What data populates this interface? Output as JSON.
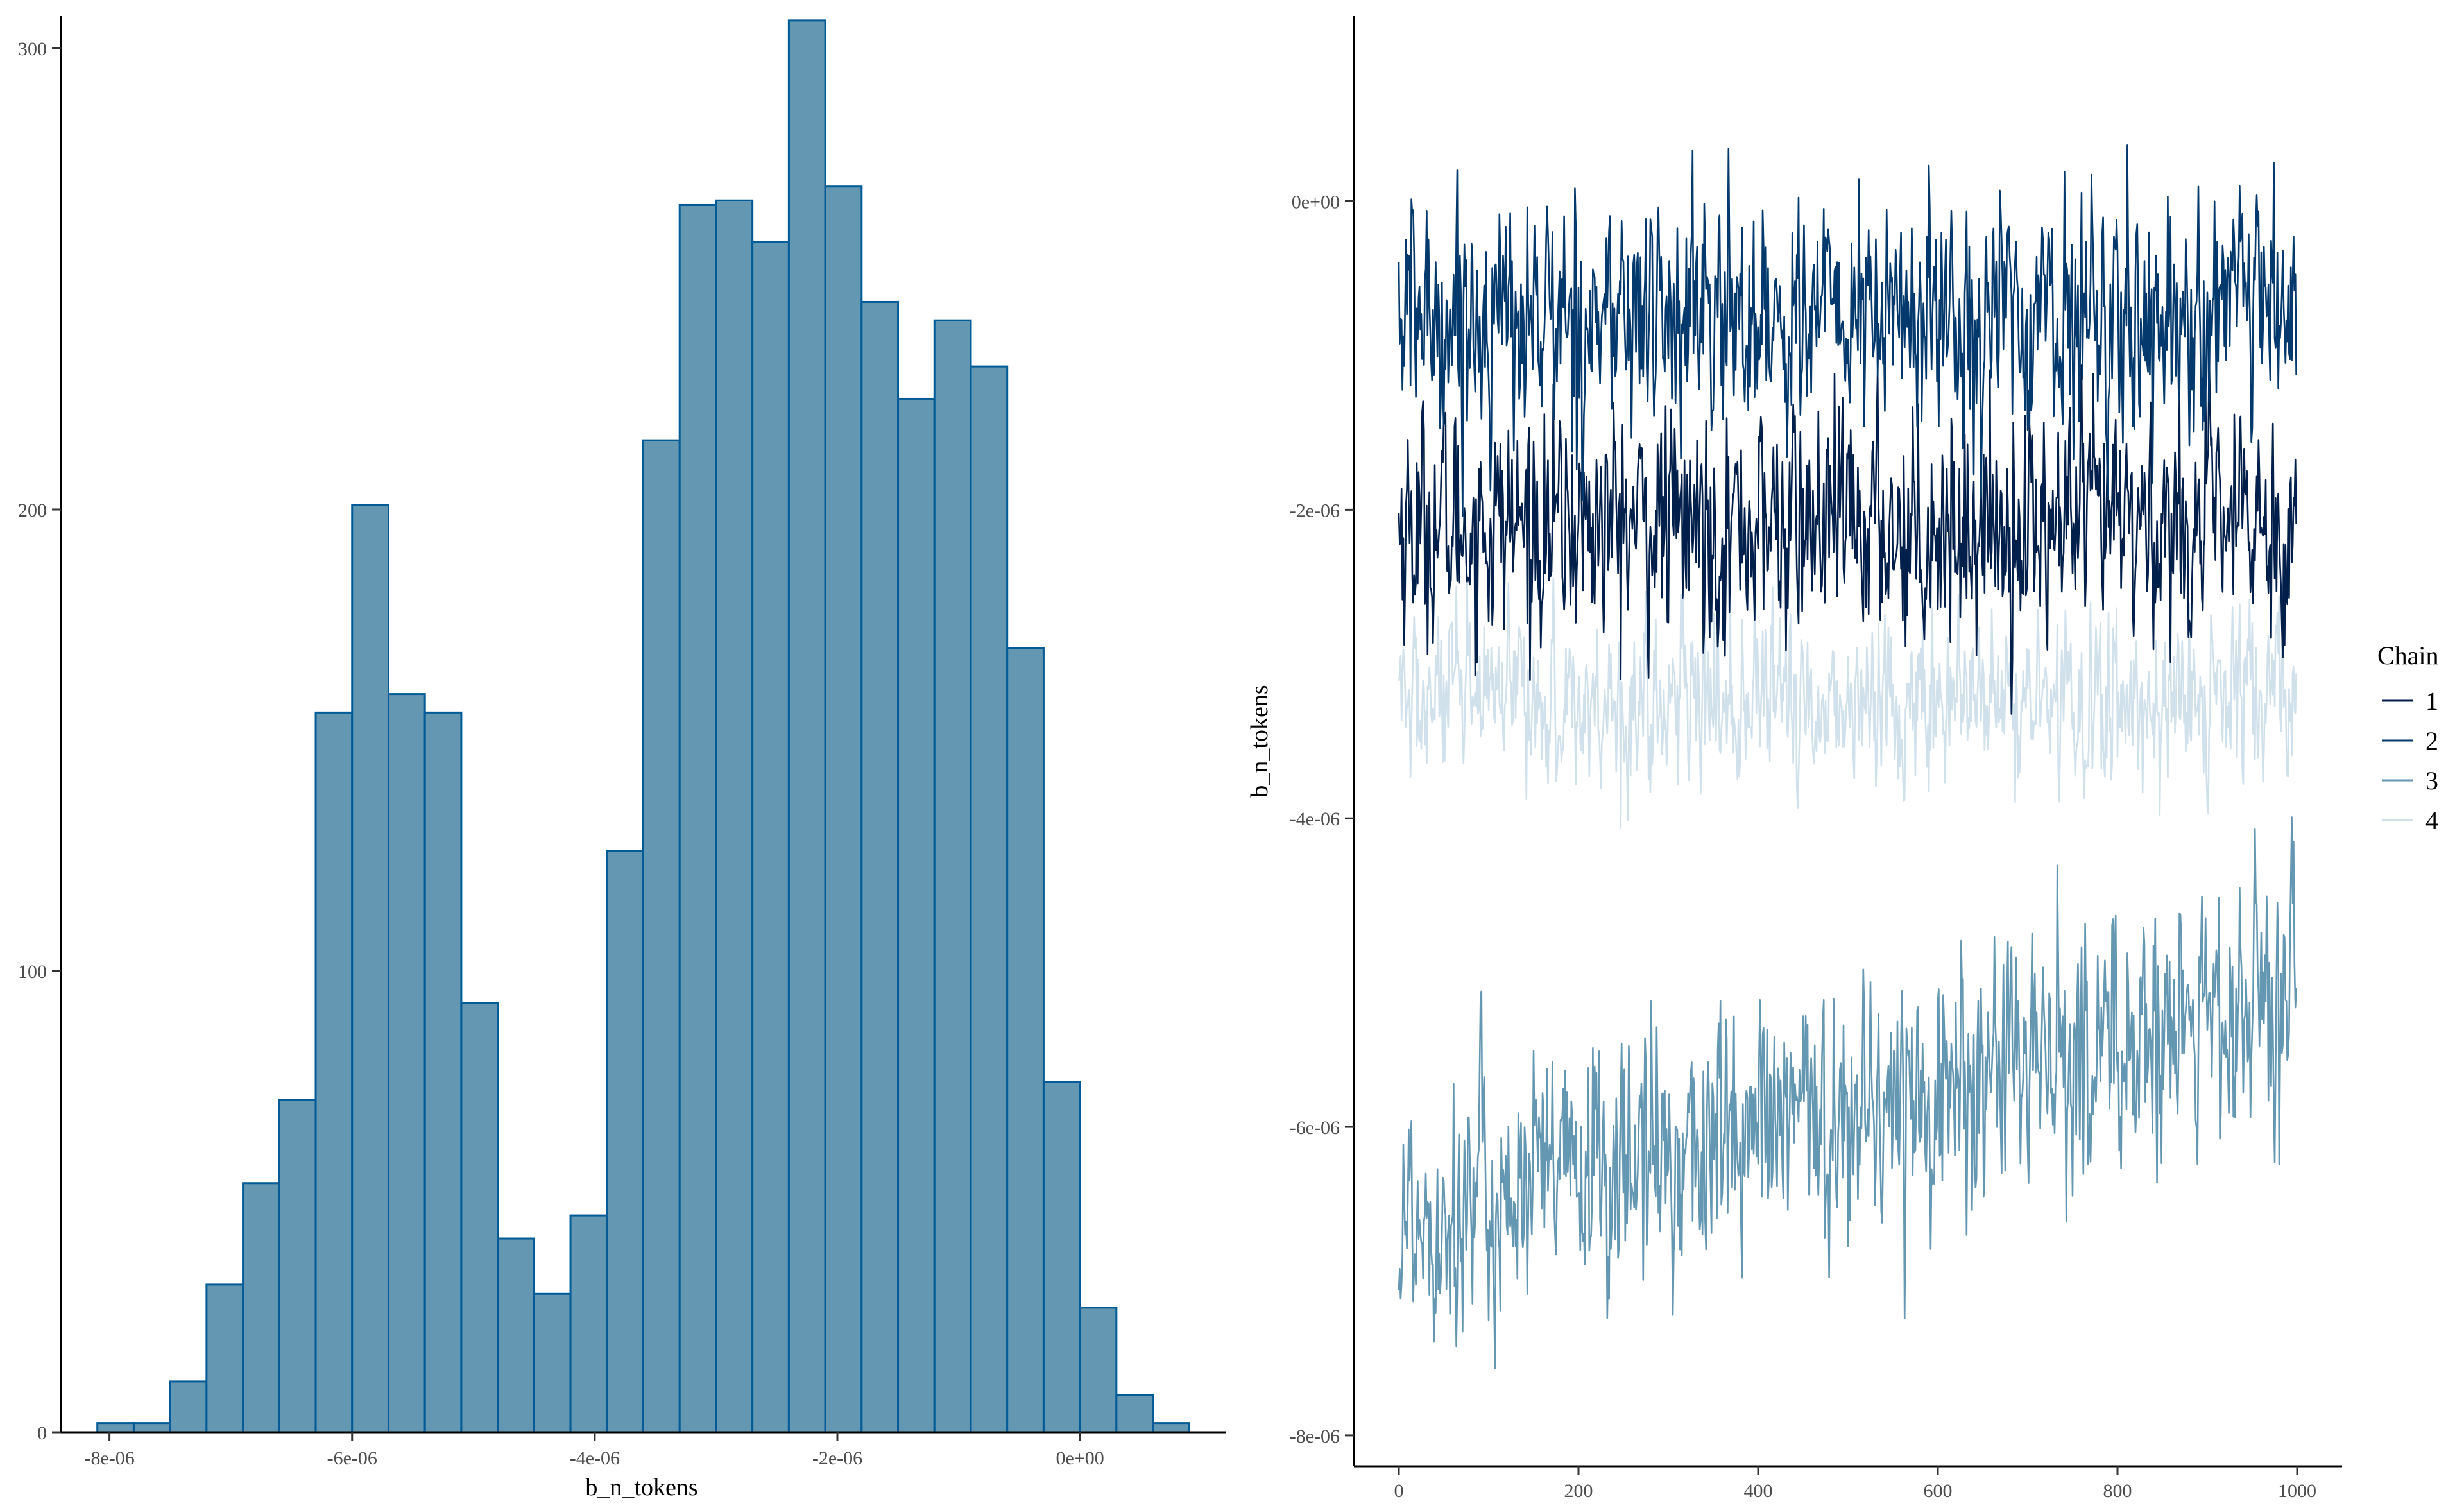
{
  "chart_data": [
    {
      "type": "bar",
      "subtype": "histogram",
      "title": "",
      "xlabel": "b_n_tokens",
      "ylabel": "",
      "bin_width": 3e-07,
      "bin_start": -8.1e-06,
      "counts": [
        2,
        2,
        11,
        32,
        54,
        72,
        156,
        201,
        160,
        156,
        93,
        42,
        30,
        47,
        126,
        215,
        266,
        267,
        258,
        306,
        270,
        245,
        224,
        241,
        231,
        170,
        76,
        27,
        8,
        2
      ],
      "xlim": [
        -8.4e-06,
        1.2e-06
      ],
      "ylim": [
        0,
        300
      ],
      "x_ticks": [
        -8e-06,
        -6e-06,
        -4e-06,
        -2e-06,
        0
      ],
      "x_tick_labels": [
        "-8e-06",
        "-6e-06",
        "-4e-06",
        "-2e-06",
        "0e+00"
      ],
      "y_ticks": [
        0,
        100,
        200,
        300
      ],
      "y_tick_labels": [
        "0",
        "100",
        "200",
        "300"
      ],
      "colors": {
        "fill": "#6497b1",
        "stroke": "#005b96"
      }
    },
    {
      "type": "line",
      "subtype": "trace-plot",
      "title": "",
      "xlabel": "",
      "ylabel": "b_n_tokens",
      "xlim": [
        -50,
        1050
      ],
      "ylim": [
        -8.2e-06,
        1.2e-06
      ],
      "x_ticks": [
        0,
        200,
        400,
        600,
        800,
        1000
      ],
      "x_tick_labels": [
        "0",
        "200",
        "400",
        "600",
        "800",
        "1000"
      ],
      "y_ticks": [
        0,
        -2e-06,
        -4e-06,
        -6e-06,
        -8e-06
      ],
      "y_tick_labels": [
        "0e+00",
        "-2e-06",
        "-4e-06",
        "-6e-06",
        "-8e-06"
      ],
      "iterations": 1000,
      "series": [
        {
          "name": "1",
          "color": "#011f4b",
          "mean_start": -2.1e-06,
          "mean_end": -2.1e-06,
          "spread": 3.5e-07
        },
        {
          "name": "2",
          "color": "#03396c",
          "mean_start": -7.5e-07,
          "mean_end": -7.5e-07,
          "spread": 3.6e-07
        },
        {
          "name": "3",
          "color": "#6497b1",
          "mean_start": -6.6e-06,
          "mean_end": -5.2e-06,
          "spread": 4e-07
        },
        {
          "name": "4",
          "color": "#d1e1ec",
          "mean_start": -3.25e-06,
          "mean_end": -3.25e-06,
          "spread": 2.6e-07
        }
      ],
      "legend": {
        "title": "Chain",
        "position": "right"
      }
    }
  ]
}
